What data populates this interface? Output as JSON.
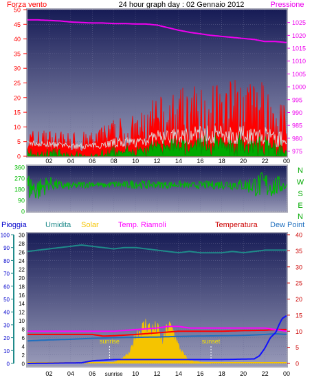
{
  "header": {
    "wind_label": "Forza vento",
    "title": "24 hour graph day : 02 Gennaio 2012",
    "pressure_label": "Pressione"
  },
  "colors": {
    "bg_top": "#1a1f5c",
    "bg_bottom": "#8e90b0",
    "frame": "#a9a9b8",
    "wind_red": "#ff0000",
    "wind_green": "#00aa00",
    "wind_white": "#d8d8d8",
    "pressure": "#ee00ee",
    "direction": "#00bb00",
    "rain": "#1010ff",
    "humidity": "#1f8a8a",
    "solar": "#f5c400",
    "soil_temp": "#ff00ff",
    "temperature": "#ff0000",
    "dewpoint": "#1f6fbf"
  },
  "chart_data": [
    {
      "type": "line",
      "title": "24 hour graph day : 02 Gennaio 2012",
      "x_ticks": [
        "02",
        "04",
        "06",
        "08",
        "10",
        "12",
        "14",
        "16",
        "18",
        "20",
        "22",
        "00"
      ],
      "y_left_label": "Forza vento",
      "y_left_ticks": [
        "0",
        "5",
        "10",
        "15",
        "20",
        "25",
        "30",
        "35",
        "40",
        "45",
        "50"
      ],
      "y_left_range": [
        0,
        50
      ],
      "y_right_label": "Pressione",
      "y_right_ticks": [
        "975",
        "980",
        "985",
        "990",
        "995",
        "1000",
        "1005",
        "1010",
        "1015",
        "1020",
        "1025"
      ],
      "y_right_range": [
        973,
        1030
      ],
      "series": [
        {
          "name": "Pressione",
          "axis": "right",
          "color": "#ee00ee",
          "x": [
            0,
            1,
            2,
            3,
            4,
            5,
            6,
            7,
            8,
            9,
            10,
            11,
            12,
            13,
            14,
            15,
            16,
            17,
            18,
            19,
            20,
            21,
            22,
            23,
            24
          ],
          "y": [
            1026,
            1026,
            1025.8,
            1025.6,
            1025.2,
            1025,
            1024.8,
            1024.8,
            1024.6,
            1024.6,
            1024.4,
            1024.4,
            1024,
            1023,
            1022,
            1021.2,
            1020.6,
            1020,
            1019.6,
            1019.2,
            1018.8,
            1018.4,
            1017.6,
            1017.6,
            1017.2
          ]
        }
      ],
      "wind_profile": {
        "x": [
          0,
          2,
          4,
          6,
          8,
          10,
          12,
          14,
          16,
          18,
          20,
          22,
          24
        ],
        "base": [
          2.5,
          2,
          1.5,
          1.5,
          2,
          2,
          3,
          3,
          3.5,
          3,
          3,
          2.5,
          1.5
        ],
        "peak": [
          8,
          8,
          7,
          7,
          11,
          12,
          17,
          19,
          21,
          22,
          22,
          21,
          17
        ]
      }
    },
    {
      "type": "line",
      "x_ticks": [
        "02",
        "04",
        "06",
        "08",
        "10",
        "12",
        "14",
        "16",
        "18",
        "20",
        "22",
        "00"
      ],
      "y_ticks": [
        "0",
        "90",
        "180",
        "270",
        "360"
      ],
      "y_range": [
        0,
        360
      ],
      "compass": [
        "N",
        "W",
        "S",
        "E",
        "N"
      ],
      "series": [
        {
          "name": "direction",
          "color": "#00bb00",
          "x": [
            0,
            1,
            2,
            3,
            4,
            5,
            6,
            7,
            8,
            9,
            10,
            11,
            12,
            13,
            14,
            15,
            16,
            17,
            18,
            19,
            20,
            21,
            22,
            23,
            24
          ],
          "y": [
            200,
            180,
            230,
            210,
            205,
            215,
            225,
            210,
            220,
            215,
            225,
            215,
            220,
            215,
            220,
            210,
            215,
            215,
            220,
            220,
            215,
            210,
            215,
            205,
            215
          ],
          "noise": [
            120,
            100,
            60,
            40,
            30,
            30,
            25,
            20,
            30,
            30,
            40,
            35,
            30,
            30,
            30,
            25,
            30,
            35,
            40,
            45,
            50,
            90,
            120,
            90,
            40
          ]
        }
      ]
    },
    {
      "type": "area",
      "legend": [
        "Pioggia",
        "Umidita",
        "Solar",
        "Temp. Riamoli",
        "Temperatura",
        "Dew Point"
      ],
      "x_ticks": [
        "02",
        "04",
        "06",
        "sunrise",
        "10",
        "12",
        "14",
        "16",
        "18",
        "20",
        "22",
        "00"
      ],
      "y_left_ticks": [
        "0",
        "10",
        "20",
        "30",
        "40",
        "50",
        "60",
        "70",
        "80",
        "90",
        "100"
      ],
      "y_left_range": [
        0,
        100
      ],
      "y_mid_ticks": [
        "0",
        "2",
        "4",
        "6",
        "8",
        "10",
        "12",
        "14",
        "16",
        "18",
        "20",
        "22",
        "24",
        "26",
        "28",
        "30"
      ],
      "y_mid_range": [
        0,
        30
      ],
      "y_right_ticks": [
        "0",
        "5",
        "10",
        "15",
        "20",
        "25",
        "30",
        "35",
        "40"
      ],
      "y_right_range": [
        0,
        40
      ],
      "annotations": [
        {
          "text": "sunrise",
          "x": 7.6
        },
        {
          "text": "sunset",
          "x": 17.0
        }
      ],
      "series": [
        {
          "name": "Umidita",
          "axis": "left",
          "color": "#1f8a8a",
          "x": [
            0,
            1,
            2,
            3,
            4,
            5,
            6,
            7,
            8,
            9,
            10,
            11,
            12,
            13,
            14,
            15,
            16,
            17,
            18,
            19,
            20,
            21,
            22,
            23,
            24
          ],
          "y": [
            87,
            88,
            89,
            90,
            91,
            92,
            91,
            90,
            89,
            90,
            90,
            89,
            88,
            87,
            86,
            87,
            86,
            86,
            86,
            87,
            86,
            87,
            88,
            88,
            88
          ]
        },
        {
          "name": "Solar",
          "axis": "mid",
          "color": "#f5c400",
          "x": [
            7.5,
            8,
            8.5,
            9,
            9.5,
            10,
            10.5,
            11,
            11.5,
            12,
            12.5,
            13,
            13.5,
            14,
            14.5,
            15,
            15.5,
            16,
            16.5,
            17
          ],
          "y": [
            0,
            0.3,
            0.8,
            1.5,
            2.5,
            7,
            8,
            9.5,
            8,
            8.5,
            5,
            9,
            8,
            4,
            2,
            0.7,
            0.5,
            0.3,
            0.2,
            0
          ]
        },
        {
          "name": "Temp. Riamoli",
          "axis": "right",
          "color": "#ff00ff",
          "x": [
            0,
            2,
            4,
            6,
            8,
            10,
            12,
            13,
            14,
            15,
            16,
            18,
            20,
            22,
            23,
            24
          ],
          "y": [
            10,
            10,
            10,
            10,
            10,
            10.5,
            11,
            11.5,
            11.5,
            11,
            11,
            11,
            11,
            11,
            10.5,
            10
          ]
        },
        {
          "name": "Temperatura",
          "axis": "right",
          "color": "#ff0000",
          "x": [
            0,
            2,
            4,
            6,
            7,
            8,
            10,
            12,
            14,
            16,
            18,
            20,
            22,
            23,
            24
          ],
          "y": [
            9,
            9,
            9,
            9,
            8.5,
            8.6,
            9,
            9.5,
            10,
            10,
            10,
            10.2,
            10.3,
            10.5,
            10.5
          ]
        },
        {
          "name": "Dew Point",
          "axis": "right",
          "color": "#1f6fbf",
          "x": [
            0,
            2,
            4,
            6,
            8,
            10,
            12,
            14,
            16,
            18,
            20,
            22,
            23,
            24
          ],
          "y": [
            7,
            7.3,
            7.5,
            7.8,
            8,
            8.1,
            8.2,
            8.4,
            8.5,
            8.6,
            8.7,
            9,
            9.2,
            9
          ]
        },
        {
          "name": "Pioggia",
          "axis": "left",
          "color": "#1010ff",
          "x": [
            0,
            3,
            5,
            6,
            8,
            10,
            14,
            18,
            21,
            21.5,
            22,
            22.5,
            23,
            23.3,
            23.6,
            23.8,
            24
          ],
          "y": [
            0,
            0.3,
            0.5,
            2,
            3,
            3,
            3,
            3,
            3.5,
            6,
            12,
            20,
            24,
            30,
            35,
            36,
            37
          ]
        }
      ]
    }
  ]
}
